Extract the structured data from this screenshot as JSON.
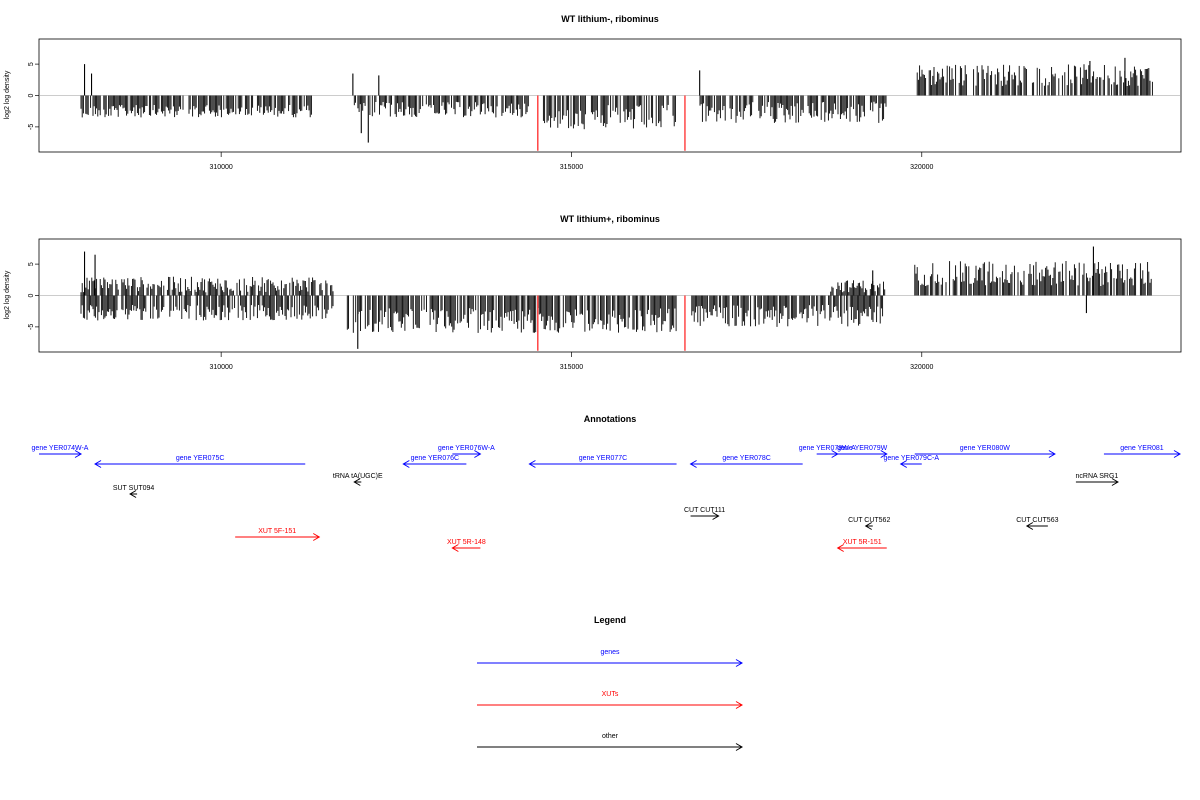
{
  "chart_data": [
    {
      "type": "bar",
      "title": "WT lithium-, ribominus",
      "ylabel": "log2 log density",
      "ylim": [
        -9,
        9
      ],
      "xlim": [
        307400,
        323700
      ],
      "x_ticks": [
        "310000",
        "315000",
        "320000"
      ],
      "y_ticks": [
        "5",
        "0",
        "-5"
      ],
      "dense_tracks": [
        {
          "from": 308000,
          "to": 311300,
          "sign": -1,
          "min": 1.5,
          "max": 3.5
        },
        {
          "from": 311900,
          "to": 314400,
          "sign": -1,
          "min": 1.0,
          "max": 3.5
        },
        {
          "from": 314600,
          "to": 316500,
          "sign": -1,
          "min": 1.5,
          "max": 5.5
        },
        {
          "from": 316800,
          "to": 319500,
          "sign": -1,
          "min": 1.0,
          "max": 4.5
        },
        {
          "from": 319900,
          "to": 323300,
          "sign": 1,
          "min": 1.5,
          "max": 5.0
        }
      ],
      "spikes": [
        {
          "x": 308050,
          "y": 5.0
        },
        {
          "x": 308150,
          "y": 3.5
        },
        {
          "x": 311880,
          "y": 3.5
        },
        {
          "x": 312000,
          "y": -6.0
        },
        {
          "x": 312100,
          "y": -7.5
        },
        {
          "x": 312250,
          "y": 3.2
        },
        {
          "x": 316830,
          "y": 4.0
        },
        {
          "x": 322400,
          "y": 5.5
        },
        {
          "x": 322900,
          "y": 6.0
        }
      ],
      "highlight_spikes": [
        {
          "x": 314520,
          "y": -8.8,
          "color": "#ff0000"
        },
        {
          "x": 316620,
          "y": -8.8,
          "color": "#ff0000"
        }
      ]
    },
    {
      "type": "bar",
      "title": "WT lithium+, ribominus",
      "ylabel": "log2 log density",
      "ylim": [
        -9,
        9
      ],
      "xlim": [
        307400,
        323700
      ],
      "x_ticks": [
        "310000",
        "315000",
        "320000"
      ],
      "y_ticks": [
        "5",
        "0",
        "-5"
      ],
      "dense_tracks": [
        {
          "from": 308000,
          "to": 311600,
          "sign": -1,
          "min": 1.5,
          "max": 4.0
        },
        {
          "from": 308000,
          "to": 311600,
          "sign": 1,
          "min": 0.5,
          "max": 3.0
        },
        {
          "from": 311800,
          "to": 316500,
          "sign": -1,
          "min": 2.0,
          "max": 6.0
        },
        {
          "from": 316700,
          "to": 319500,
          "sign": -1,
          "min": 1.5,
          "max": 5.0
        },
        {
          "from": 318700,
          "to": 319500,
          "sign": 1,
          "min": 0.5,
          "max": 2.5
        },
        {
          "from": 319900,
          "to": 323300,
          "sign": 1,
          "min": 1.5,
          "max": 5.5
        }
      ],
      "spikes": [
        {
          "x": 308050,
          "y": 7.0
        },
        {
          "x": 308200,
          "y": 6.5
        },
        {
          "x": 311950,
          "y": -8.5
        },
        {
          "x": 319300,
          "y": 4.0
        },
        {
          "x": 322350,
          "y": -2.8
        },
        {
          "x": 322450,
          "y": 7.8
        }
      ],
      "highlight_spikes": [
        {
          "x": 314520,
          "y": -8.8,
          "color": "#ff0000"
        },
        {
          "x": 316620,
          "y": -8.8,
          "color": "#ff0000"
        }
      ]
    }
  ],
  "annotations": {
    "title": "Annotations",
    "items": [
      {
        "label": "gene YER074W-A",
        "color": "#0000ff",
        "x1": 307400,
        "x2": 308000,
        "dir": "right",
        "row": 0
      },
      {
        "label": "gene YER075C",
        "color": "#0000ff",
        "x1": 308200,
        "x2": 311200,
        "dir": "left",
        "row": 1
      },
      {
        "label": "tRNA tA(UGC)E",
        "color": "#000000",
        "x1": 311900,
        "x2": 312000,
        "dir": "left",
        "row": 2
      },
      {
        "label": "SUT SUT094",
        "color": "#000000",
        "x1": 308700,
        "x2": 308800,
        "dir": "left",
        "row": 3
      },
      {
        "label": "gene YER076W-A",
        "color": "#0000ff",
        "x1": 313300,
        "x2": 313700,
        "dir": "right",
        "row": 0
      },
      {
        "label": "gene YER076C",
        "color": "#0000ff",
        "x1": 312600,
        "x2": 313500,
        "dir": "left",
        "row": 1
      },
      {
        "label": "gene YER077C",
        "color": "#0000ff",
        "x1": 314400,
        "x2": 316500,
        "dir": "left",
        "row": 1
      },
      {
        "label": "gene YER078C",
        "color": "#0000ff",
        "x1": 316700,
        "x2": 318300,
        "dir": "left",
        "row": 1
      },
      {
        "label": "gene YER078W-A",
        "color": "#0000ff",
        "x1": 318500,
        "x2": 318800,
        "dir": "right",
        "row": 0
      },
      {
        "label": "gene YER079W",
        "color": "#0000ff",
        "x1": 318800,
        "x2": 319500,
        "dir": "right",
        "row": 0
      },
      {
        "label": "gene YER079C-A",
        "color": "#0000ff",
        "x1": 319700,
        "x2": 320000,
        "dir": "left",
        "row": 1
      },
      {
        "label": "gene YER080W",
        "color": "#0000ff",
        "x1": 319900,
        "x2": 321900,
        "dir": "right",
        "row": 0
      },
      {
        "label": "gene YER081",
        "color": "#0000ff",
        "x1": 322600,
        "x2": 323700,
        "dir": "right",
        "row": 0
      },
      {
        "label": "ncRNA SRG1",
        "color": "#000000",
        "x1": 322200,
        "x2": 322800,
        "dir": "right",
        "row": 2
      },
      {
        "label": "CUT CUT111",
        "color": "#000000",
        "x1": 316700,
        "x2": 317100,
        "dir": "right",
        "row": 4
      },
      {
        "label": "CUT CUT562",
        "color": "#000000",
        "x1": 319200,
        "x2": 319300,
        "dir": "left",
        "row": 5
      },
      {
        "label": "CUT CUT563",
        "color": "#000000",
        "x1": 321500,
        "x2": 321800,
        "dir": "left",
        "row": 5
      },
      {
        "label": "XUT 5F-151",
        "color": "#ff0000",
        "x1": 310200,
        "x2": 311400,
        "dir": "right",
        "row": 6
      },
      {
        "label": "XUT 5R-148",
        "color": "#ff0000",
        "x1": 313300,
        "x2": 313700,
        "dir": "left",
        "row": 7
      },
      {
        "label": "XUT 5R-151",
        "color": "#ff0000",
        "x1": 318800,
        "x2": 319500,
        "dir": "left",
        "row": 7
      }
    ]
  },
  "legend": {
    "title": "Legend",
    "items": [
      {
        "label": "genes",
        "color": "#0000ff"
      },
      {
        "label": "XUTs",
        "color": "#ff0000"
      },
      {
        "label": "other",
        "color": "#000000"
      }
    ]
  }
}
